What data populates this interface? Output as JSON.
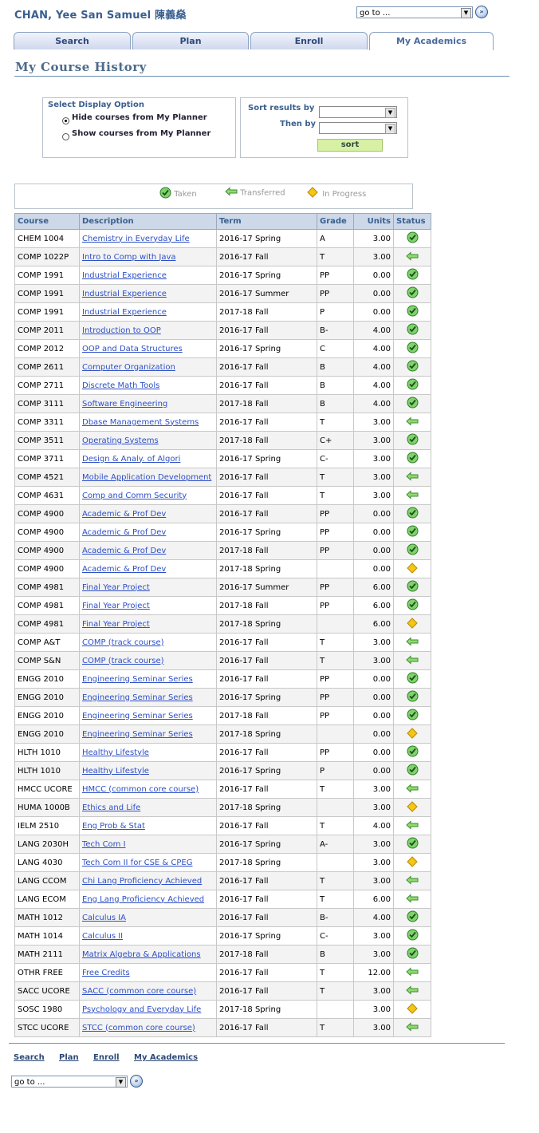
{
  "header": {
    "student_name": "CHAN, Yee San Samuel 陳義燊",
    "goto_value": "go to ..."
  },
  "tabs": [
    {
      "label": "Search",
      "active": false
    },
    {
      "label": "Plan",
      "active": false
    },
    {
      "label": "Enroll",
      "active": false
    },
    {
      "label": "My Academics",
      "active": true
    }
  ],
  "page_title": "My Course History",
  "display_option": {
    "label": "Select Display Option",
    "options": [
      {
        "label": "Hide courses from My Planner",
        "selected": true
      },
      {
        "label": "Show courses from My Planner",
        "selected": false
      }
    ]
  },
  "sort": {
    "sort_by_label": "Sort results by",
    "then_by_label": "Then by",
    "sort_by_value": "",
    "then_by_value": "",
    "button_label": "sort"
  },
  "legend": [
    {
      "icon": "taken-check-icon",
      "label": "Taken"
    },
    {
      "icon": "transferred-arrow-icon",
      "label": "Transferred"
    },
    {
      "icon": "in-progress-diamond-icon",
      "label": "In Progress"
    }
  ],
  "table": {
    "columns": [
      "Course",
      "Description",
      "Term",
      "Grade",
      "Units",
      "Status"
    ],
    "rows": [
      {
        "course": "CHEM 1004",
        "description": "Chemistry in Everyday Life",
        "term": "2016-17 Spring",
        "grade": "A",
        "units": "3.00",
        "status": "taken"
      },
      {
        "course": "COMP 1022P",
        "description": "Intro to Comp with Java",
        "term": "2016-17 Fall",
        "grade": "T",
        "units": "3.00",
        "status": "transferred"
      },
      {
        "course": "COMP 1991",
        "description": "Industrial Experience",
        "term": "2016-17 Spring",
        "grade": "PP",
        "units": "0.00",
        "status": "taken"
      },
      {
        "course": "COMP 1991",
        "description": "Industrial Experience",
        "term": "2016-17 Summer",
        "grade": "PP",
        "units": "0.00",
        "status": "taken"
      },
      {
        "course": "COMP 1991",
        "description": "Industrial Experience",
        "term": "2017-18 Fall",
        "grade": "P",
        "units": "0.00",
        "status": "taken"
      },
      {
        "course": "COMP 2011",
        "description": "Introduction to OOP",
        "term": "2016-17 Fall",
        "grade": "B-",
        "units": "4.00",
        "status": "taken"
      },
      {
        "course": "COMP 2012",
        "description": "OOP and Data Structures",
        "term": "2016-17 Spring",
        "grade": "C",
        "units": "4.00",
        "status": "taken"
      },
      {
        "course": "COMP 2611",
        "description": "Computer Organization",
        "term": "2016-17 Fall",
        "grade": "B",
        "units": "4.00",
        "status": "taken"
      },
      {
        "course": "COMP 2711",
        "description": "Discrete Math Tools",
        "term": "2016-17 Fall",
        "grade": "B",
        "units": "4.00",
        "status": "taken"
      },
      {
        "course": "COMP 3111",
        "description": "Software Engineering",
        "term": "2017-18 Fall",
        "grade": "B",
        "units": "4.00",
        "status": "taken"
      },
      {
        "course": "COMP 3311",
        "description": "Dbase Management Systems",
        "term": "2016-17 Fall",
        "grade": "T",
        "units": "3.00",
        "status": "transferred"
      },
      {
        "course": "COMP 3511",
        "description": "Operating Systems",
        "term": "2017-18 Fall",
        "grade": "C+",
        "units": "3.00",
        "status": "taken"
      },
      {
        "course": "COMP 3711",
        "description": "Design & Analy. of Algori",
        "term": "2016-17 Spring",
        "grade": "C-",
        "units": "3.00",
        "status": "taken"
      },
      {
        "course": "COMP 4521",
        "description": "Mobile Application Development",
        "term": "2016-17 Fall",
        "grade": "T",
        "units": "3.00",
        "status": "transferred"
      },
      {
        "course": "COMP 4631",
        "description": "Comp and Comm Security",
        "term": "2016-17 Fall",
        "grade": "T",
        "units": "3.00",
        "status": "transferred"
      },
      {
        "course": "COMP 4900",
        "description": "Academic & Prof Dev",
        "term": "2016-17 Fall",
        "grade": "PP",
        "units": "0.00",
        "status": "taken"
      },
      {
        "course": "COMP 4900",
        "description": "Academic & Prof Dev",
        "term": "2016-17 Spring",
        "grade": "PP",
        "units": "0.00",
        "status": "taken"
      },
      {
        "course": "COMP 4900",
        "description": "Academic & Prof Dev",
        "term": "2017-18 Fall",
        "grade": "PP",
        "units": "0.00",
        "status": "taken"
      },
      {
        "course": "COMP 4900",
        "description": "Academic & Prof Dev",
        "term": "2017-18 Spring",
        "grade": "",
        "units": "0.00",
        "status": "in-progress"
      },
      {
        "course": "COMP 4981",
        "description": "Final Year Project",
        "term": "2016-17 Summer",
        "grade": "PP",
        "units": "6.00",
        "status": "taken"
      },
      {
        "course": "COMP 4981",
        "description": "Final Year Project",
        "term": "2017-18 Fall",
        "grade": "PP",
        "units": "6.00",
        "status": "taken"
      },
      {
        "course": "COMP 4981",
        "description": "Final Year Project",
        "term": "2017-18 Spring",
        "grade": "",
        "units": "6.00",
        "status": "in-progress"
      },
      {
        "course": "COMP A&T",
        "description": "COMP (track course)",
        "term": "2016-17 Fall",
        "grade": "T",
        "units": "3.00",
        "status": "transferred"
      },
      {
        "course": "COMP S&N",
        "description": "COMP (track course)",
        "term": "2016-17 Fall",
        "grade": "T",
        "units": "3.00",
        "status": "transferred"
      },
      {
        "course": "ENGG 2010",
        "description": "Engineering Seminar Series",
        "term": "2016-17 Fall",
        "grade": "PP",
        "units": "0.00",
        "status": "taken"
      },
      {
        "course": "ENGG 2010",
        "description": "Engineering Seminar Series",
        "term": "2016-17 Spring",
        "grade": "PP",
        "units": "0.00",
        "status": "taken"
      },
      {
        "course": "ENGG 2010",
        "description": "Engineering Seminar Series",
        "term": "2017-18 Fall",
        "grade": "PP",
        "units": "0.00",
        "status": "taken"
      },
      {
        "course": "ENGG 2010",
        "description": "Engineering Seminar Series",
        "term": "2017-18 Spring",
        "grade": "",
        "units": "0.00",
        "status": "in-progress"
      },
      {
        "course": "HLTH 1010",
        "description": "Healthy Lifestyle",
        "term": "2016-17 Fall",
        "grade": "PP",
        "units": "0.00",
        "status": "taken"
      },
      {
        "course": "HLTH 1010",
        "description": "Healthy Lifestyle",
        "term": "2016-17 Spring",
        "grade": "P",
        "units": "0.00",
        "status": "taken"
      },
      {
        "course": "HMCC UCORE",
        "description": "HMCC (common core course)",
        "term": "2016-17 Fall",
        "grade": "T",
        "units": "3.00",
        "status": "transferred"
      },
      {
        "course": "HUMA 1000B",
        "description": "Ethics and Life",
        "term": "2017-18 Spring",
        "grade": "",
        "units": "3.00",
        "status": "in-progress"
      },
      {
        "course": "IELM 2510",
        "description": "Eng Prob & Stat",
        "term": "2016-17 Fall",
        "grade": "T",
        "units": "4.00",
        "status": "transferred"
      },
      {
        "course": "LANG 2030H",
        "description": "Tech Com I",
        "term": "2016-17 Spring",
        "grade": "A-",
        "units": "3.00",
        "status": "taken"
      },
      {
        "course": "LANG 4030",
        "description": "Tech Com II for CSE & CPEG",
        "term": "2017-18 Spring",
        "grade": "",
        "units": "3.00",
        "status": "in-progress"
      },
      {
        "course": "LANG CCOM",
        "description": "Chi Lang Proficiency Achieved",
        "term": "2016-17 Fall",
        "grade": "T",
        "units": "3.00",
        "status": "transferred"
      },
      {
        "course": "LANG ECOM",
        "description": "Eng Lang Proficiency Achieved",
        "term": "2016-17 Fall",
        "grade": "T",
        "units": "6.00",
        "status": "transferred"
      },
      {
        "course": "MATH 1012",
        "description": "Calculus IA",
        "term": "2016-17 Fall",
        "grade": "B-",
        "units": "4.00",
        "status": "taken"
      },
      {
        "course": "MATH 1014",
        "description": "Calculus II",
        "term": "2016-17 Spring",
        "grade": "C-",
        "units": "3.00",
        "status": "taken"
      },
      {
        "course": "MATH 2111",
        "description": "Matrix Algebra & Applications",
        "term": "2017-18 Fall",
        "grade": "B",
        "units": "3.00",
        "status": "taken"
      },
      {
        "course": "OTHR FREE",
        "description": "Free Credits",
        "term": "2016-17 Fall",
        "grade": "T",
        "units": "12.00",
        "status": "transferred"
      },
      {
        "course": "SACC UCORE",
        "description": "SACC (common core course)",
        "term": "2016-17 Fall",
        "grade": "T",
        "units": "3.00",
        "status": "transferred"
      },
      {
        "course": "SOSC 1980",
        "description": "Psychology and Everyday Life",
        "term": "2017-18 Spring",
        "grade": "",
        "units": "3.00",
        "status": "in-progress"
      },
      {
        "course": "STCC UCORE",
        "description": "STCC (common core course)",
        "term": "2016-17 Fall",
        "grade": "T",
        "units": "3.00",
        "status": "transferred"
      }
    ]
  },
  "footer": {
    "links": [
      "Search",
      "Plan",
      "Enroll",
      "My Academics"
    ],
    "goto_value": "go to ..."
  },
  "colors": {
    "accent": "#3a5f8f",
    "link": "#2d4fc6",
    "taken": "#3ba23b",
    "transferred": "#6cc35a",
    "in_progress": "#f5c518"
  }
}
